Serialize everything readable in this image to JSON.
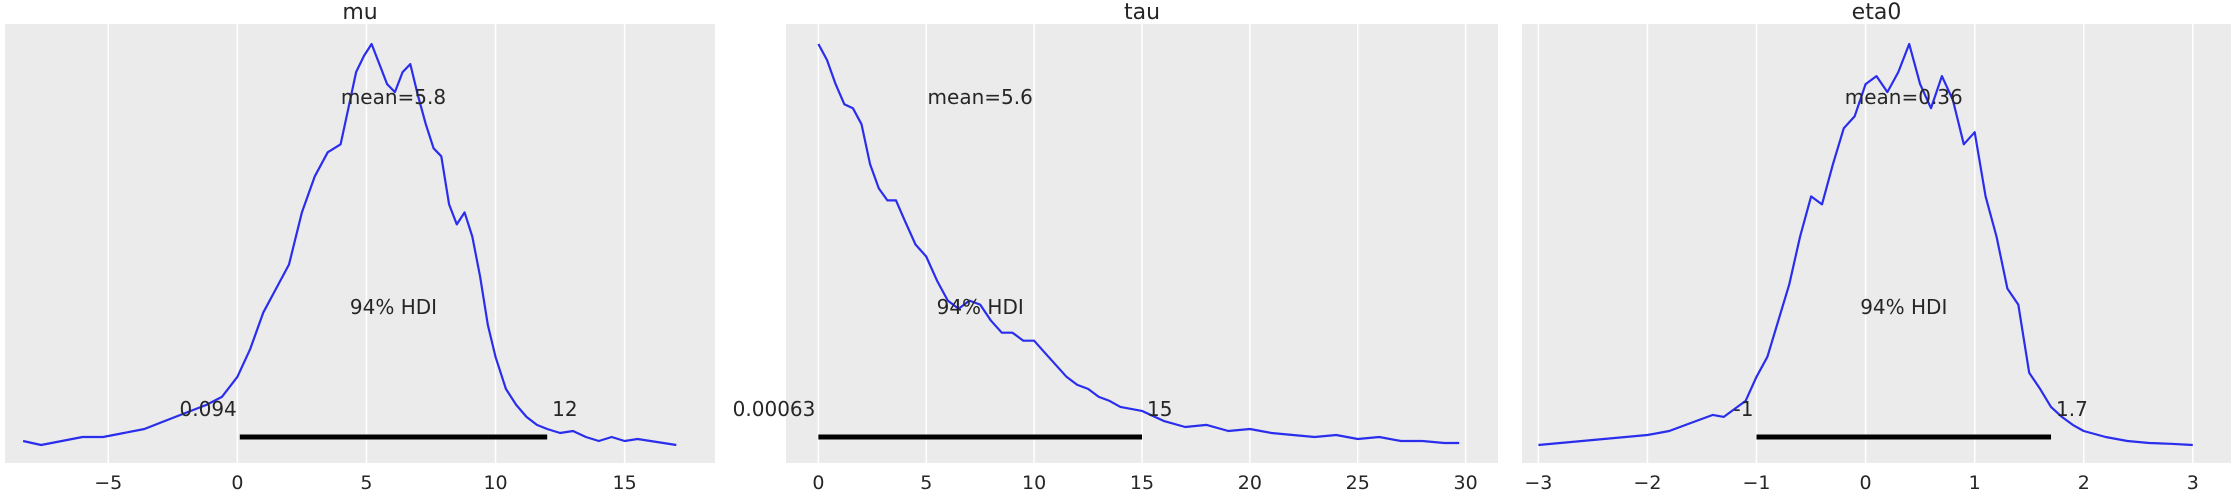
{
  "chart_data": [
    {
      "type": "line",
      "title": "mu",
      "xlim": [
        -9.0,
        18.5
      ],
      "xticks": [
        -5,
        0,
        5,
        10,
        15
      ],
      "tick_labels": [
        "−5",
        "0",
        "5",
        "10",
        "15"
      ],
      "mean_label": "mean=5.8",
      "hdi_label": "94% HDI",
      "hdi": [
        0.094,
        12
      ],
      "hdi_low_label": "0.094",
      "hdi_high_label": "12",
      "density_ymax": 1.0,
      "x": [
        -8.3,
        -7.6,
        -6.8,
        -6.0,
        -5.2,
        -4.4,
        -3.6,
        -2.8,
        -2.0,
        -1.2,
        -0.6,
        0.0,
        0.5,
        1.0,
        1.5,
        2.0,
        2.5,
        3.0,
        3.5,
        4.0,
        4.3,
        4.6,
        4.9,
        5.2,
        5.5,
        5.8,
        6.1,
        6.4,
        6.7,
        7.0,
        7.3,
        7.6,
        7.9,
        8.2,
        8.5,
        8.8,
        9.1,
        9.4,
        9.7,
        10.0,
        10.4,
        10.8,
        11.2,
        11.6,
        12.0,
        12.5,
        13.0,
        13.5,
        14.0,
        14.5,
        15.0,
        15.5,
        16.0,
        16.5,
        17.0
      ],
      "y": [
        0.01,
        0.0,
        0.01,
        0.02,
        0.02,
        0.03,
        0.04,
        0.06,
        0.08,
        0.1,
        0.12,
        0.17,
        0.24,
        0.33,
        0.39,
        0.45,
        0.58,
        0.67,
        0.73,
        0.75,
        0.84,
        0.93,
        0.97,
        1.0,
        0.95,
        0.9,
        0.88,
        0.93,
        0.95,
        0.87,
        0.8,
        0.74,
        0.72,
        0.6,
        0.55,
        0.58,
        0.52,
        0.42,
        0.3,
        0.22,
        0.14,
        0.1,
        0.07,
        0.05,
        0.04,
        0.03,
        0.035,
        0.02,
        0.01,
        0.02,
        0.01,
        0.015,
        0.01,
        0.005,
        0.0
      ]
    },
    {
      "type": "line",
      "title": "tau",
      "xlim": [
        -1.5,
        31.5
      ],
      "xticks": [
        0,
        5,
        10,
        15,
        20,
        25,
        30
      ],
      "tick_labels": [
        "0",
        "5",
        "10",
        "15",
        "20",
        "25",
        "30"
      ],
      "mean_label": "mean=5.6",
      "hdi_label": "94% HDI",
      "hdi": [
        0.00063,
        15
      ],
      "hdi_low_label": "0.00063",
      "hdi_high_label": "15",
      "density_ymax": 1.0,
      "x": [
        0.0,
        0.4,
        0.8,
        1.2,
        1.6,
        2.0,
        2.4,
        2.8,
        3.2,
        3.6,
        4.0,
        4.5,
        5.0,
        5.5,
        6.0,
        6.5,
        7.0,
        7.5,
        8.0,
        8.5,
        9.0,
        9.5,
        10.0,
        10.5,
        11.0,
        11.5,
        12.0,
        12.5,
        13.0,
        13.5,
        14.0,
        15.0,
        16.0,
        17.0,
        18.0,
        19.0,
        20.0,
        21.0,
        22.0,
        23.0,
        24.0,
        25.0,
        26.0,
        27.0,
        28.0,
        29.0,
        29.7
      ],
      "y": [
        1.0,
        0.96,
        0.9,
        0.85,
        0.84,
        0.8,
        0.7,
        0.64,
        0.61,
        0.61,
        0.56,
        0.5,
        0.47,
        0.41,
        0.36,
        0.34,
        0.36,
        0.35,
        0.31,
        0.28,
        0.28,
        0.26,
        0.26,
        0.23,
        0.2,
        0.17,
        0.15,
        0.14,
        0.12,
        0.11,
        0.095,
        0.085,
        0.06,
        0.045,
        0.05,
        0.035,
        0.04,
        0.03,
        0.025,
        0.02,
        0.025,
        0.015,
        0.02,
        0.01,
        0.01,
        0.005,
        0.005
      ]
    },
    {
      "type": "line",
      "title": "eta0",
      "xlim": [
        -3.15,
        3.35
      ],
      "xticks": [
        -3,
        -2,
        -1,
        0,
        1,
        2,
        3
      ],
      "tick_labels": [
        "−3",
        "−2",
        "−1",
        "0",
        "1",
        "2",
        "3"
      ],
      "mean_label": "mean=0.36",
      "hdi_label": "94% HDI",
      "hdi": [
        -1,
        1.7
      ],
      "hdi_low_label": "-1",
      "hdi_high_label": "1.7",
      "density_ymax": 1.0,
      "x": [
        -3.0,
        -2.8,
        -2.6,
        -2.4,
        -2.2,
        -2.0,
        -1.8,
        -1.6,
        -1.4,
        -1.3,
        -1.2,
        -1.1,
        -1.0,
        -0.9,
        -0.8,
        -0.7,
        -0.6,
        -0.5,
        -0.4,
        -0.3,
        -0.2,
        -0.1,
        0.0,
        0.1,
        0.2,
        0.3,
        0.4,
        0.5,
        0.6,
        0.7,
        0.8,
        0.9,
        1.0,
        1.1,
        1.2,
        1.3,
        1.4,
        1.5,
        1.6,
        1.7,
        1.8,
        1.9,
        2.0,
        2.2,
        2.4,
        2.6,
        2.8,
        3.0
      ],
      "y": [
        0.0,
        0.005,
        0.01,
        0.015,
        0.02,
        0.025,
        0.035,
        0.055,
        0.075,
        0.07,
        0.09,
        0.11,
        0.17,
        0.22,
        0.31,
        0.4,
        0.52,
        0.62,
        0.6,
        0.7,
        0.79,
        0.82,
        0.9,
        0.92,
        0.88,
        0.93,
        1.0,
        0.9,
        0.84,
        0.92,
        0.86,
        0.75,
        0.78,
        0.62,
        0.52,
        0.39,
        0.35,
        0.18,
        0.14,
        0.095,
        0.07,
        0.05,
        0.035,
        0.02,
        0.01,
        0.005,
        0.003,
        0.0
      ]
    }
  ]
}
